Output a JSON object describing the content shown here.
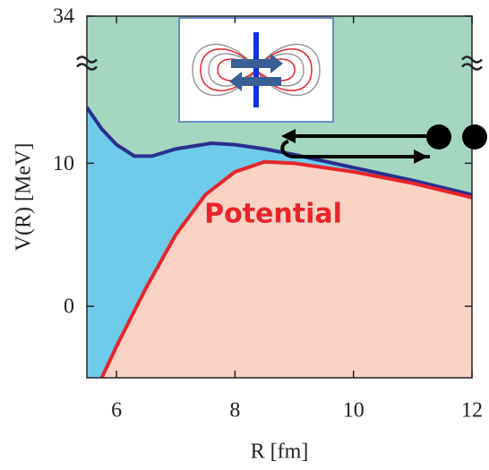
{
  "chart_data": {
    "type": "line",
    "x_label": "R [fm]",
    "y_label": "V(R) [MeV]",
    "annotation": "Potential",
    "xlim": [
      5.5,
      12
    ],
    "xticks": [
      6,
      8,
      10,
      12
    ],
    "ylim": [
      -5,
      34
    ],
    "y_break": [
      17,
      31
    ],
    "yticks": [
      0,
      10,
      34
    ],
    "series": [
      {
        "color": "#2a2f8f",
        "x": [
          5.5,
          5.75,
          6.0,
          6.3,
          6.6,
          7.0,
          7.6,
          8.0,
          8.5,
          9.0,
          10.0,
          11.0,
          12.0
        ],
        "values": [
          13.9,
          12.4,
          11.3,
          10.5,
          10.5,
          11.0,
          11.4,
          11.3,
          11.0,
          10.6,
          9.7,
          8.8,
          7.8
        ]
      },
      {
        "color": "#e8252b",
        "x": [
          5.75,
          6.0,
          6.5,
          7.0,
          7.5,
          8.0,
          8.5,
          9.0,
          10.0,
          11.0,
          12.0
        ],
        "values": [
          -5,
          -2.8,
          1.3,
          5.0,
          7.8,
          9.4,
          10.1,
          10.0,
          9.4,
          8.6,
          7.6
        ]
      }
    ],
    "area_colors": [
      "#a4d6c0",
      "#6fcbea",
      "#fbd3c5"
    ]
  }
}
